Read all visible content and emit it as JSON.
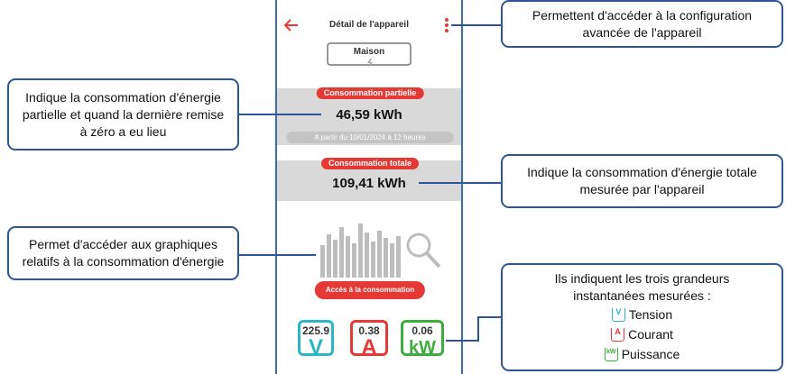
{
  "header": {
    "title": "Détail de l'appareil"
  },
  "device": {
    "name": "Maison"
  },
  "partial": {
    "label": "Consommation partielle",
    "value": "46,59 kWh",
    "since": "A partir du 10/01/2024 à 12 heures"
  },
  "total": {
    "label": "Consommation totale",
    "value": "109,41 kWh"
  },
  "button": {
    "label": "Accès à la consommation"
  },
  "readings": [
    {
      "value": "225.9",
      "unit": "V"
    },
    {
      "value": "0.38",
      "unit": "A"
    },
    {
      "value": "0.06",
      "unit": "kW"
    }
  ],
  "callouts": [
    "Permettent d'accéder à la configuration avancée de l'appareil",
    "Indique la consommation d'énergie partielle et quand la dernière remise à zéro a eu lieu",
    "Indique la consommation d'énergie totale mesurée par l'appareil",
    "Permet d'accéder aux graphiques relatifs à la consommation d'énergie"
  ],
  "legend": {
    "intro": "Ils indiquent les trois grandeurs instantanées mesurées :",
    "items": [
      "Tension",
      "Courant",
      "Puissance"
    ]
  }
}
